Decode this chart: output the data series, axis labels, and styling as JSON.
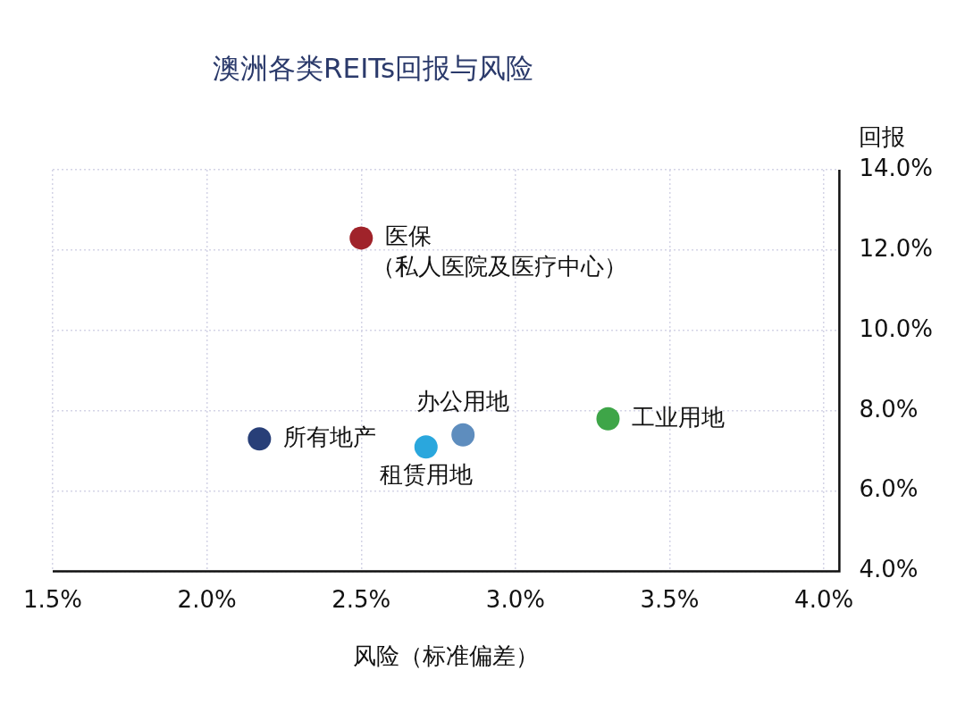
{
  "chart_data": {
    "type": "scatter",
    "title": "澳洲各类REITs回报与风险",
    "xlabel": "风险（标准偏差）",
    "ylabel": "回报",
    "xlim": [
      1.5,
      4.05
    ],
    "ylim": [
      4,
      14
    ],
    "xticks": [
      {
        "value": 1.5,
        "label": "1.5%"
      },
      {
        "value": 2.0,
        "label": "2.0%"
      },
      {
        "value": 2.5,
        "label": "2.5%"
      },
      {
        "value": 3.0,
        "label": "3.0%"
      },
      {
        "value": 3.5,
        "label": "3.5%"
      },
      {
        "value": 4.0,
        "label": "4.0%"
      }
    ],
    "yticks": [
      {
        "value": 4,
        "label": "4.0%"
      },
      {
        "value": 6,
        "label": "6.0%"
      },
      {
        "value": 8,
        "label": "8.0%"
      },
      {
        "value": 10,
        "label": "10.0%"
      },
      {
        "value": 12,
        "label": "12.0%"
      },
      {
        "value": 14,
        "label": "14.0%"
      }
    ],
    "grid": true,
    "legend": false,
    "marker": "circle",
    "series": [
      {
        "name": "医保（私人医院及医疗中心）",
        "color": "#a0232a",
        "x": [
          2.5
        ],
        "values": [
          12.3
        ]
      },
      {
        "name": "所有地产",
        "color": "#283f78",
        "x": [
          2.17
        ],
        "values": [
          7.3
        ]
      },
      {
        "name": "租赁用地",
        "color": "#2aa7dd",
        "x": [
          2.71
        ],
        "values": [
          7.1
        ]
      },
      {
        "name": "办公用地",
        "color": "#5e8dbe",
        "x": [
          2.83
        ],
        "values": [
          7.4
        ]
      },
      {
        "name": "工业用地",
        "color": "#3ea548",
        "x": [
          3.3
        ],
        "values": [
          7.8
        ]
      }
    ]
  }
}
